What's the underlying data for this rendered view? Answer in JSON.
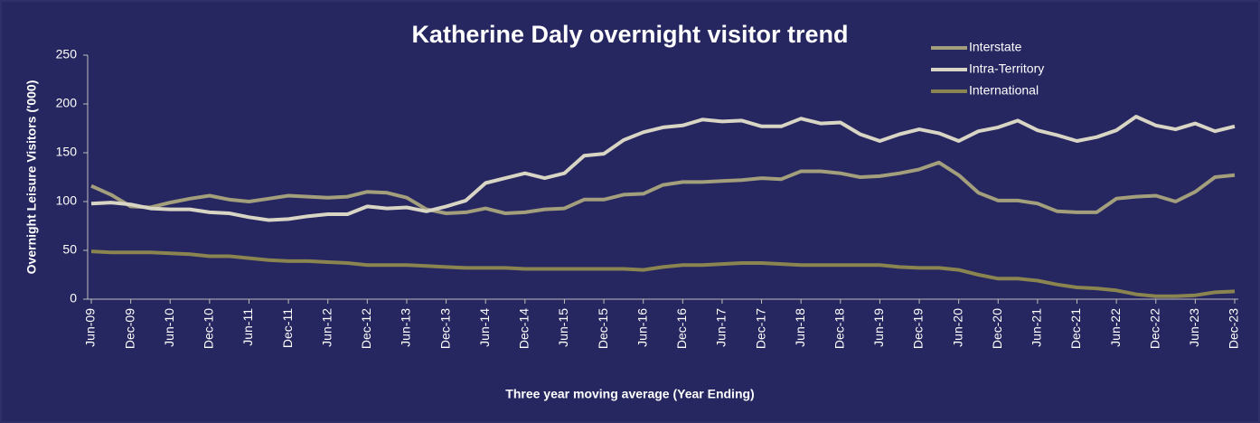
{
  "chart_data": {
    "type": "line",
    "title": "Katherine Daly overnight visitor trend",
    "y_label": "Overnight Leisure Visitors ('000)",
    "x_label": "Three year moving average (Year Ending)",
    "categories": [
      "Jun-09",
      null,
      "Dec-09",
      null,
      "Jun-10",
      null,
      "Dec-10",
      null,
      "Jun-11",
      null,
      "Dec-11",
      null,
      "Jun-12",
      null,
      "Dec-12",
      null,
      "Jun-13",
      null,
      "Dec-13",
      null,
      "Jun-14",
      null,
      "Dec-14",
      null,
      "Jun-15",
      null,
      "Dec-15",
      null,
      "Jun-16",
      null,
      "Dec-16",
      null,
      "Jun-17",
      null,
      "Dec-17",
      null,
      "Jun-18",
      null,
      "Dec-18",
      null,
      "Jun-19",
      null,
      "Dec-19",
      null,
      "Jun-20",
      null,
      "Dec-20",
      null,
      "Jun-21",
      null,
      "Dec-21",
      null,
      "Jun-22",
      null,
      "Dec-22",
      null,
      "Jun-23",
      null,
      "Dec-23"
    ],
    "series": [
      {
        "name": "Interstate",
        "color": "#a39e7c",
        "values": [
          116,
          107,
          95,
          94,
          99,
          103,
          106,
          102,
          100,
          103,
          106,
          105,
          104,
          105,
          110,
          109,
          104,
          92,
          88,
          89,
          93,
          88,
          89,
          92,
          93,
          102,
          102,
          107,
          108,
          117,
          120,
          120,
          121,
          122,
          124,
          123,
          131,
          131,
          129,
          125,
          126,
          129,
          133,
          140,
          127,
          109,
          101,
          101,
          98,
          90,
          89,
          89,
          103,
          105,
          106,
          100,
          110,
          125,
          127
        ]
      },
      {
        "name": "Intra-Territory",
        "color": "#d9d5c5",
        "values": [
          98,
          99,
          97,
          93,
          92,
          92,
          89,
          88,
          84,
          81,
          82,
          85,
          87,
          87,
          95,
          93,
          94,
          90,
          95,
          101,
          119,
          124,
          129,
          124,
          129,
          147,
          149,
          163,
          171,
          176,
          178,
          184,
          182,
          183,
          177,
          177,
          185,
          180,
          181,
          169,
          162,
          169,
          174,
          170,
          162,
          172,
          176,
          183,
          173,
          168,
          162,
          166,
          173,
          187,
          178,
          174,
          180,
          172,
          177
        ]
      },
      {
        "name": "International",
        "color": "#8a8450",
        "values": [
          49,
          48,
          48,
          48,
          47,
          46,
          44,
          44,
          42,
          40,
          39,
          39,
          38,
          37,
          35,
          35,
          35,
          34,
          33,
          32,
          32,
          32,
          31,
          31,
          31,
          31,
          31,
          31,
          30,
          33,
          35,
          35,
          36,
          37,
          37,
          36,
          35,
          35,
          35,
          35,
          35,
          33,
          32,
          32,
          30,
          25,
          21,
          21,
          19,
          15,
          12,
          11,
          9,
          5,
          3,
          3,
          4,
          7,
          8
        ]
      }
    ],
    "ylim": [
      0,
      250
    ],
    "yticks": [
      0,
      50,
      100,
      150,
      200,
      250
    ],
    "grid": false,
    "legend": "top-right"
  }
}
